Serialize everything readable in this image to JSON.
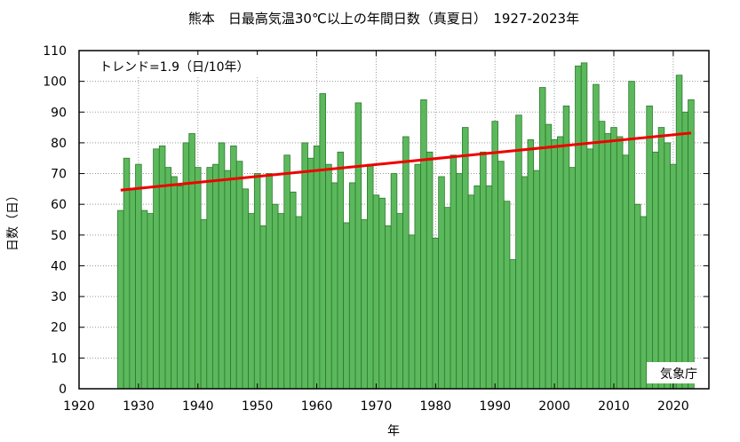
{
  "chart_data": {
    "type": "bar",
    "title": "熊本　日最高気温30℃以上の年間日数（真夏日）　1927-2023年",
    "xlabel": "年",
    "ylabel": "日数（日）",
    "trend_label": "トレンド=1.9（日/10年）",
    "credit": "気象庁",
    "xlim": [
      1920,
      2026
    ],
    "ylim": [
      0,
      110
    ],
    "x_ticks": [
      1920,
      1930,
      1940,
      1950,
      1960,
      1970,
      1980,
      1990,
      2000,
      2010,
      2020
    ],
    "y_ticks": [
      0,
      10,
      20,
      30,
      40,
      50,
      60,
      70,
      80,
      90,
      100,
      110
    ],
    "grid": true,
    "bar_color": "#5cb85c",
    "bar_edge_color": "#2a7a2a",
    "trend_color": "#ee0000",
    "trend": {
      "x": [
        1927,
        2023
      ],
      "y": [
        64.6,
        83.2
      ]
    },
    "categories": [
      1927,
      1928,
      1929,
      1930,
      1931,
      1932,
      1933,
      1934,
      1935,
      1936,
      1937,
      1938,
      1939,
      1940,
      1941,
      1942,
      1943,
      1944,
      1945,
      1946,
      1947,
      1948,
      1949,
      1950,
      1951,
      1952,
      1953,
      1954,
      1955,
      1956,
      1957,
      1958,
      1959,
      1960,
      1961,
      1962,
      1963,
      1964,
      1965,
      1966,
      1967,
      1968,
      1969,
      1970,
      1971,
      1972,
      1973,
      1974,
      1975,
      1976,
      1977,
      1978,
      1979,
      1980,
      1981,
      1982,
      1983,
      1984,
      1985,
      1986,
      1987,
      1988,
      1989,
      1990,
      1991,
      1992,
      1993,
      1994,
      1995,
      1996,
      1997,
      1998,
      1999,
      2000,
      2001,
      2002,
      2003,
      2004,
      2005,
      2006,
      2007,
      2008,
      2009,
      2010,
      2011,
      2012,
      2013,
      2014,
      2015,
      2016,
      2017,
      2018,
      2019,
      2020,
      2021,
      2022,
      2023
    ],
    "values": [
      58,
      75,
      65,
      73,
      58,
      57,
      78,
      79,
      72,
      69,
      66,
      80,
      83,
      72,
      55,
      72,
      73,
      80,
      71,
      79,
      74,
      65,
      57,
      70,
      53,
      70,
      60,
      57,
      76,
      64,
      56,
      80,
      75,
      79,
      96,
      73,
      67,
      77,
      54,
      67,
      93,
      55,
      73,
      63,
      62,
      53,
      70,
      57,
      82,
      50,
      73,
      94,
      77,
      49,
      69,
      59,
      76,
      70,
      85,
      63,
      66,
      77,
      66,
      87,
      74,
      61,
      42,
      89,
      69,
      81,
      71,
      98,
      86,
      81,
      82,
      92,
      72,
      105,
      106,
      78,
      99,
      87,
      83,
      85,
      82,
      76,
      100,
      60,
      56,
      92,
      77,
      85,
      80,
      73,
      102,
      90,
      94
    ]
  }
}
